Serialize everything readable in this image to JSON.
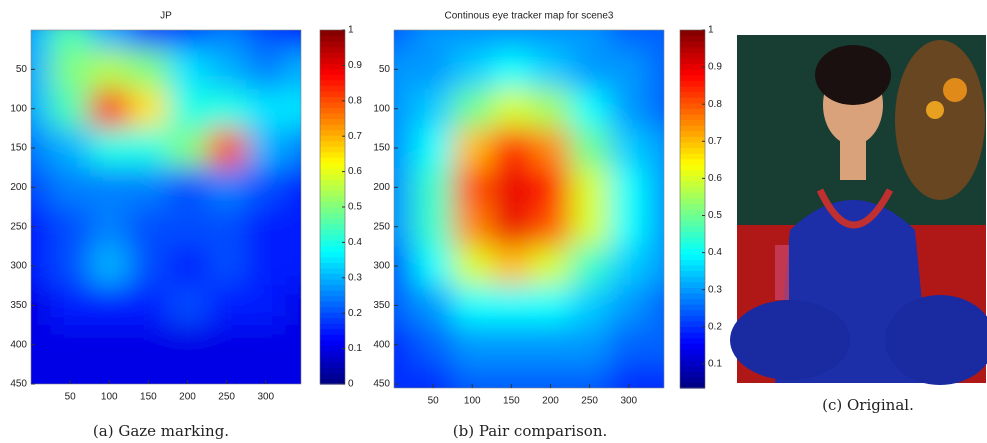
{
  "chart_data": [
    {
      "type": "heatmap",
      "title": "JP",
      "x": [
        0,
        50,
        100,
        150,
        200,
        250,
        300,
        350
      ],
      "y": [
        0,
        50,
        100,
        150,
        200,
        250,
        300,
        350,
        400,
        450
      ],
      "values": [
        [
          0.3,
          0.45,
          0.3,
          0.2,
          0.2,
          0.25,
          0.2,
          0.15
        ],
        [
          0.3,
          0.5,
          0.55,
          0.5,
          0.35,
          0.3,
          0.25,
          0.3
        ],
        [
          0.3,
          0.45,
          0.85,
          0.65,
          0.4,
          0.4,
          0.35,
          0.35
        ],
        [
          0.25,
          0.3,
          0.4,
          0.4,
          0.5,
          0.8,
          0.3,
          0.25
        ],
        [
          0.2,
          0.25,
          0.25,
          0.25,
          0.2,
          0.25,
          0.2,
          0.15
        ],
        [
          0.15,
          0.2,
          0.25,
          0.2,
          0.2,
          0.2,
          0.15,
          0.15
        ],
        [
          0.15,
          0.2,
          0.3,
          0.2,
          0.15,
          0.2,
          0.15,
          0.15
        ],
        [
          0.1,
          0.15,
          0.15,
          0.15,
          0.2,
          0.15,
          0.15,
          0.1
        ],
        [
          0.1,
          0.1,
          0.1,
          0.1,
          0.1,
          0.1,
          0.1,
          0.1
        ],
        [
          0.1,
          0.1,
          0.1,
          0.1,
          0.1,
          0.1,
          0.1,
          0.1
        ]
      ],
      "xlim": [
        0,
        345
      ],
      "ylim": [
        0,
        450
      ],
      "xticks": [
        50,
        100,
        150,
        200,
        250,
        300
      ],
      "yticks": [
        50,
        100,
        150,
        200,
        250,
        300,
        350,
        400,
        450
      ],
      "clim": [
        0,
        1
      ],
      "cticks": [
        0,
        0.1,
        0.2,
        0.3,
        0.4,
        0.5,
        0.6,
        0.7,
        0.8,
        0.9,
        1
      ],
      "colormap": "jet"
    },
    {
      "type": "heatmap",
      "title": "Continous eye tracker map for scene3",
      "x": [
        0,
        50,
        100,
        150,
        200,
        250,
        300,
        350
      ],
      "y": [
        0,
        50,
        100,
        150,
        200,
        250,
        300,
        350,
        400,
        450
      ],
      "values": [
        [
          0.25,
          0.3,
          0.3,
          0.3,
          0.3,
          0.3,
          0.25,
          0.25
        ],
        [
          0.3,
          0.3,
          0.35,
          0.4,
          0.35,
          0.3,
          0.3,
          0.25
        ],
        [
          0.3,
          0.35,
          0.5,
          0.6,
          0.55,
          0.4,
          0.3,
          0.25
        ],
        [
          0.3,
          0.4,
          0.7,
          0.85,
          0.75,
          0.5,
          0.35,
          0.3
        ],
        [
          0.3,
          0.45,
          0.8,
          0.9,
          0.85,
          0.6,
          0.4,
          0.3
        ],
        [
          0.3,
          0.45,
          0.75,
          0.9,
          0.8,
          0.6,
          0.4,
          0.3
        ],
        [
          0.25,
          0.4,
          0.6,
          0.7,
          0.6,
          0.45,
          0.35,
          0.3
        ],
        [
          0.25,
          0.3,
          0.4,
          0.4,
          0.4,
          0.35,
          0.3,
          0.25
        ],
        [
          0.2,
          0.25,
          0.3,
          0.3,
          0.3,
          0.3,
          0.25,
          0.25
        ],
        [
          0.2,
          0.2,
          0.25,
          0.25,
          0.25,
          0.25,
          0.2,
          0.2
        ]
      ],
      "xlim": [
        0,
        345
      ],
      "ylim": [
        0,
        455
      ],
      "xticks": [
        50,
        100,
        150,
        200,
        250,
        300
      ],
      "yticks": [
        50,
        100,
        150,
        200,
        250,
        300,
        350,
        400,
        450
      ],
      "clim": [
        0.035,
        1
      ],
      "cticks": [
        0.1,
        0.2,
        0.3,
        0.4,
        0.5,
        0.6,
        0.7,
        0.8,
        0.9,
        1
      ],
      "colormap": "jet"
    }
  ],
  "captions": [
    "(a)  Gaze marking.",
    "(b)  Pair comparison.",
    "(c)  Original."
  ]
}
